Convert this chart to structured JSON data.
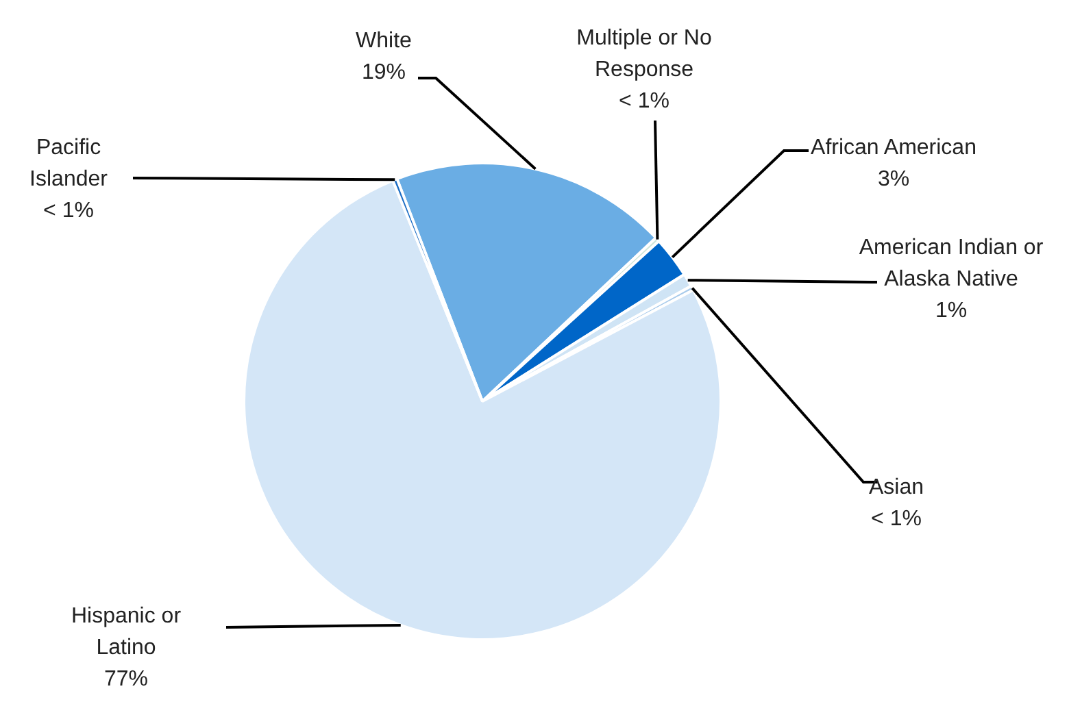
{
  "chart_data": {
    "type": "pie",
    "categories": [
      "White",
      "Multiple or No Response",
      "African American",
      "American Indian or Alaska Native",
      "Asian",
      "Hispanic or Latino",
      "Pacific Islander"
    ],
    "values": [
      18.8,
      0.3,
      2.8,
      0.9,
      0.3,
      76.6,
      0.3
    ],
    "colors": [
      "#6aade4",
      "#cfe6da",
      "#0066c8",
      "#cfe4f5",
      "#a9cbeb",
      "#d4e6f7",
      "#1a6cc4"
    ],
    "value_labels": [
      "19%",
      "< 1%",
      "3%",
      "1%",
      "< 1%",
      "77%",
      "< 1%"
    ],
    "legend": false
  }
}
